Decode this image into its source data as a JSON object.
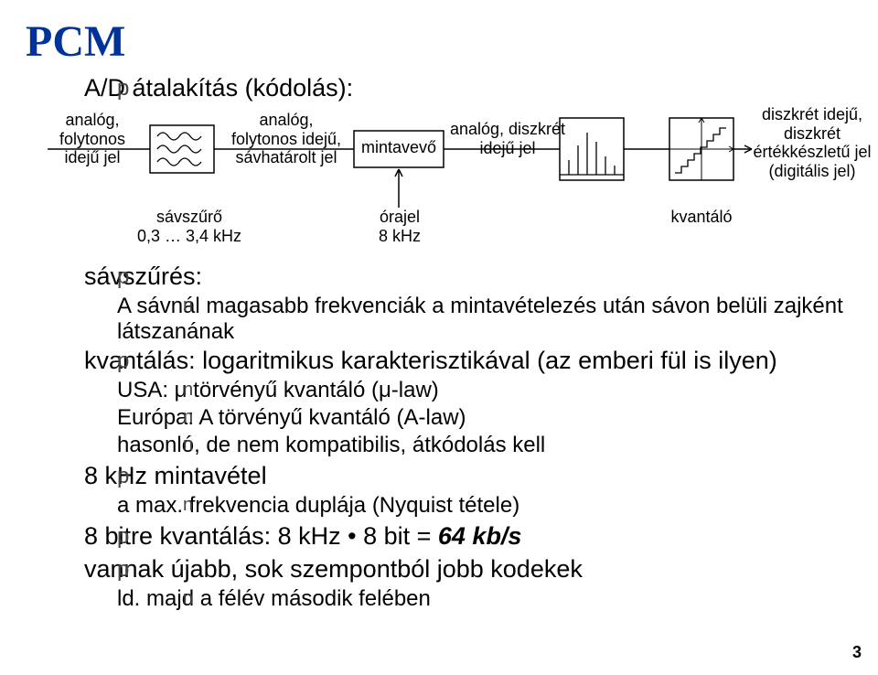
{
  "title": "PCM",
  "bullet_glyph": "p",
  "subbullet_glyph": "n",
  "page_number": "3",
  "diagram": {
    "labels": {
      "sig_in": "analóg,\nfolytonos\nidejű jel",
      "filter_out": "analóg,\nfolytonos idejű,\nsávhatárolt jel",
      "sampler": "mintavevő",
      "sampled": "analóg, diszkrét\nidejű jel",
      "digital": "diszkrét idejű,\ndiszkrét\nértékkészletű jel\n(digitális jel)",
      "filter_note": "sávszűrő\n0,3 … 3,4 kHz",
      "clock": "órajel\n8 kHz",
      "quantizer": "kvantáló"
    }
  },
  "body": [
    {
      "level": 1,
      "text": "A/D átalakítás (kódolás):"
    },
    {
      "level": 1,
      "text": "sávszűrés:"
    },
    {
      "level": 2,
      "text": "A sávnál magasabb frekvenciák a mintavételezés után sávon belüli zajként látszanának"
    },
    {
      "level": 1,
      "text": "kvantálás: logaritmikus karakterisztikával (az emberi fül is ilyen)"
    },
    {
      "level": 2,
      "text": "USA: μ törvényű kvantáló (μ-law)"
    },
    {
      "level": 2,
      "text": "Európa: A törvényű kvantáló (A-law)"
    },
    {
      "level": 2,
      "text": "hasonló, de nem kompatibilis, átkódolás kell"
    },
    {
      "level": 1,
      "text": "8 kHz mintavétel"
    },
    {
      "level": 2,
      "text": "a max. frekvencia duplája (Nyquist tétele)"
    },
    {
      "level": 1,
      "html": "8 bitre kvantálás: 8 kHz • 8 bit = <span class='bold'>64 kb/s</span>"
    },
    {
      "level": 1,
      "text": "vannak újabb, sok szempontból jobb kodekek"
    },
    {
      "level": 2,
      "text": "ld. majd a félév második felében"
    }
  ]
}
